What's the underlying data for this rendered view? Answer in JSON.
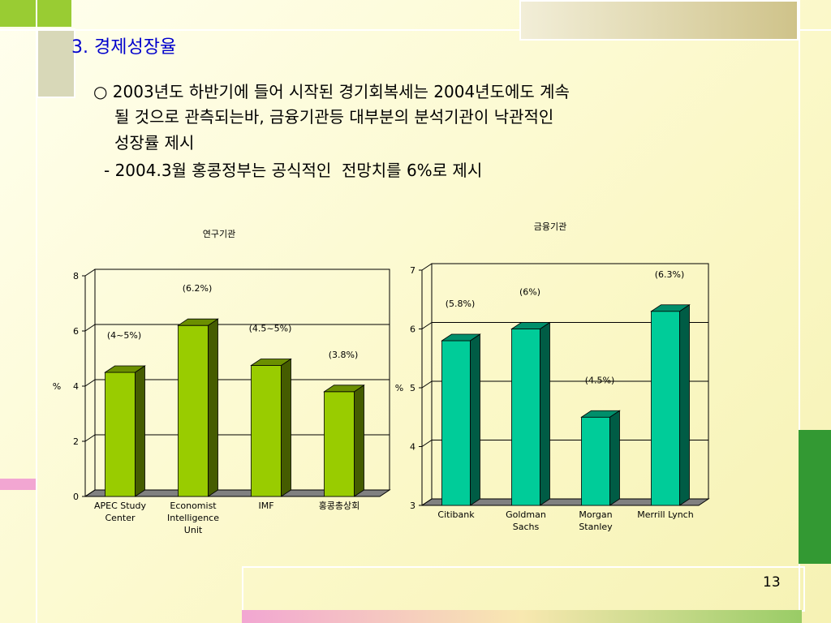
{
  "slide": {
    "title": "3. 경제성장율",
    "body": [
      "○ 2003년도 하반기에 들어 시작된 경기회복세는 2004년도에도 계속",
      "될 것으로 관측되는바, 금융기관등 대부분의 분석기관이 낙관적인",
      "성장률 제시",
      "- 2004.3월 홍콩정부는 공식적인  전망치를 6%로 제시"
    ],
    "page_number": "13"
  },
  "chart_data": [
    {
      "type": "bar3d",
      "title": "연구기관",
      "ylabel": "%",
      "categories": [
        "APEC Study Center",
        "Economist Intelligence Unit",
        "IMF",
        "홍콩총상회"
      ],
      "values": [
        4.5,
        6.2,
        4.75,
        3.8
      ],
      "value_labels": [
        "(4~5%)",
        "(6.2%)",
        "(4.5~5%)",
        "(3.8%)"
      ],
      "color": "#99cc00",
      "ylim": [
        0,
        8
      ],
      "yticks": [
        0,
        2,
        4,
        6,
        8
      ],
      "grid": true
    },
    {
      "type": "bar3d",
      "title": "금융기관",
      "ylabel": "%",
      "categories": [
        "Citibank",
        "Goldman Sachs",
        "Morgan Stanley",
        "Merrill Lynch"
      ],
      "values": [
        5.8,
        6,
        4.5,
        6.3
      ],
      "value_labels": [
        "(5.8%)",
        "(6%)",
        "(4.5%)",
        "(6.3%)"
      ],
      "color": "#00cc99",
      "ylim": [
        3,
        7
      ],
      "yticks": [
        3,
        4,
        5,
        6,
        7
      ],
      "grid": true
    }
  ]
}
